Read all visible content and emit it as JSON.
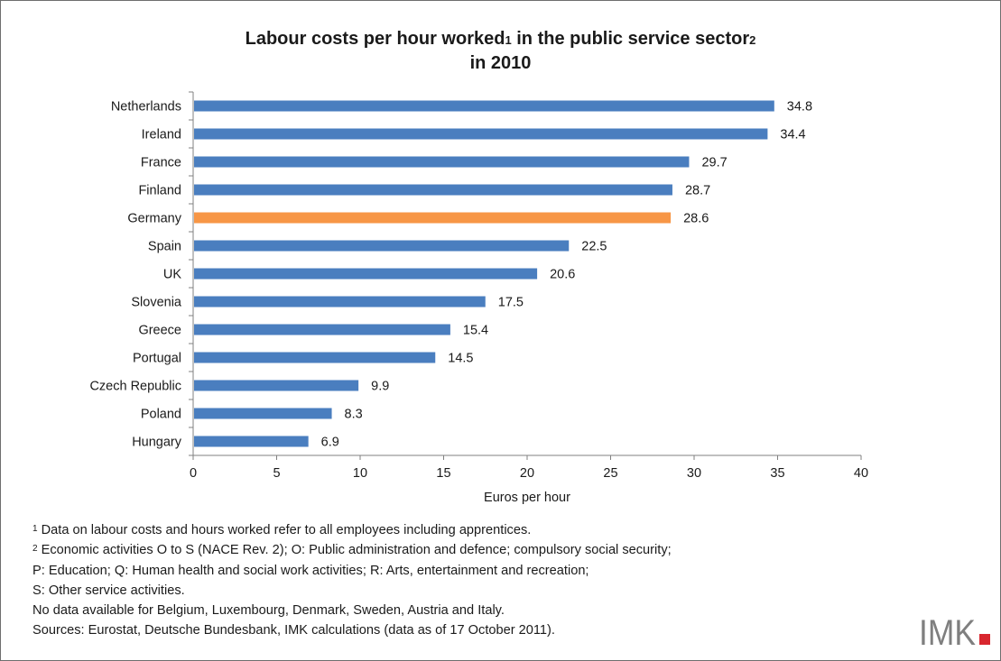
{
  "title": {
    "line1_a": "Labour costs per hour worked",
    "note1": "1",
    "line1_b": " in the public service sector",
    "note2": "2",
    "line2": "in 2010"
  },
  "chart_data": {
    "type": "bar",
    "orientation": "horizontal",
    "categories": [
      "Netherlands",
      "Ireland",
      "France",
      "Finland",
      "Germany",
      "Spain",
      "UK",
      "Slovenia",
      "Greece",
      "Portugal",
      "Czech Republic",
      "Poland",
      "Hungary"
    ],
    "values": [
      34.8,
      34.4,
      29.7,
      28.7,
      28.6,
      22.5,
      20.6,
      17.5,
      15.4,
      14.5,
      9.9,
      8.3,
      6.9
    ],
    "value_labels": [
      "34.8",
      "34.4",
      "29.7",
      "28.7",
      "28.6",
      "22.5",
      "20.6",
      "17.5",
      "15.4",
      "14.5",
      "9.9",
      "8.3",
      "6.9"
    ],
    "xlabel": "Euros per hour",
    "xlim": [
      0,
      40
    ],
    "xticks": [
      0,
      5,
      10,
      15,
      20,
      25,
      30,
      35,
      40
    ],
    "grid": false,
    "bar_color": "#4a7ebf",
    "highlight_category": "Germany",
    "highlight_color": "#f79646"
  },
  "footnotes": {
    "n1_mark": "1",
    "n1_text": " Data on labour costs and hours worked refer to all employees including apprentices.",
    "n2_mark": "2",
    "n2_text": " Economic activities O to S (NACE Rev. 2); O: Public administration and defence; compulsory social security;",
    "line3": "P: Education; Q: Human health and social work activities; R: Arts, entertainment and recreation;",
    "line4": "S: Other service activities.",
    "line5": "No data available for Belgium, Luxembourg, Denmark, Sweden, Austria and Italy.",
    "line6": "Sources: Eurostat, Deutsche Bundesbank, IMK calculations (data as of 17 October 2011)."
  },
  "logo": {
    "text": "IMK",
    "bar_color": "#d8262e"
  }
}
